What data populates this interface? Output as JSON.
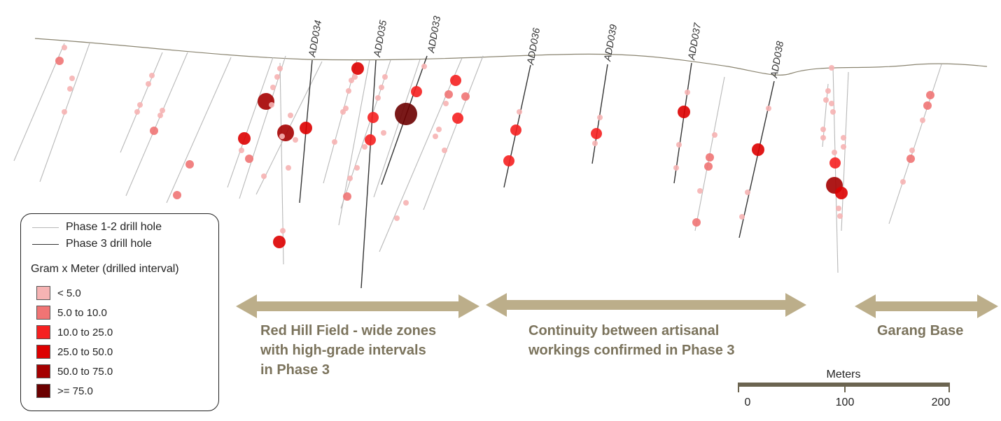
{
  "legend": {
    "line_items": [
      {
        "label": "Phase 1-2 drill hole",
        "color": "#b8b8b8"
      },
      {
        "label": "Phase 3 drill hole",
        "color": "#333333"
      }
    ],
    "title": "Gram x Meter (drilled interval)",
    "classes": [
      {
        "label": "< 5.0",
        "color": "#f6b3b3"
      },
      {
        "label": "5.0 to 10.0",
        "color": "#f07474"
      },
      {
        "label": "10.0 to 25.0",
        "color": "#f52020"
      },
      {
        "label": "25.0 to 50.0",
        "color": "#dd0000"
      },
      {
        "label": "50.0 to 75.0",
        "color": "#a50000"
      },
      {
        "label": ">= 75.0",
        "color": "#6b0000"
      }
    ]
  },
  "phase3_holes": [
    "ADD034",
    "ADD035",
    "ADD033",
    "ADD036",
    "ADD039",
    "ADD037",
    "ADD038"
  ],
  "zones": [
    {
      "lines": [
        "Red Hill Field - wide zones",
        "with high-grade intervals",
        "in Phase 3"
      ]
    },
    {
      "lines": [
        "Continuity between artisanal",
        "workings confirmed in Phase 3"
      ]
    },
    {
      "lines": [
        "Garang Base"
      ]
    }
  ],
  "scale_bar": {
    "title": "Meters",
    "ticks": [
      "0",
      "100",
      "200"
    ]
  },
  "colors": {
    "arrow": "#bcae8a",
    "topography": "#8a8470",
    "phase12": "#b8b8b8",
    "phase3": "#333333",
    "scale_bar": "#6b6450"
  }
}
